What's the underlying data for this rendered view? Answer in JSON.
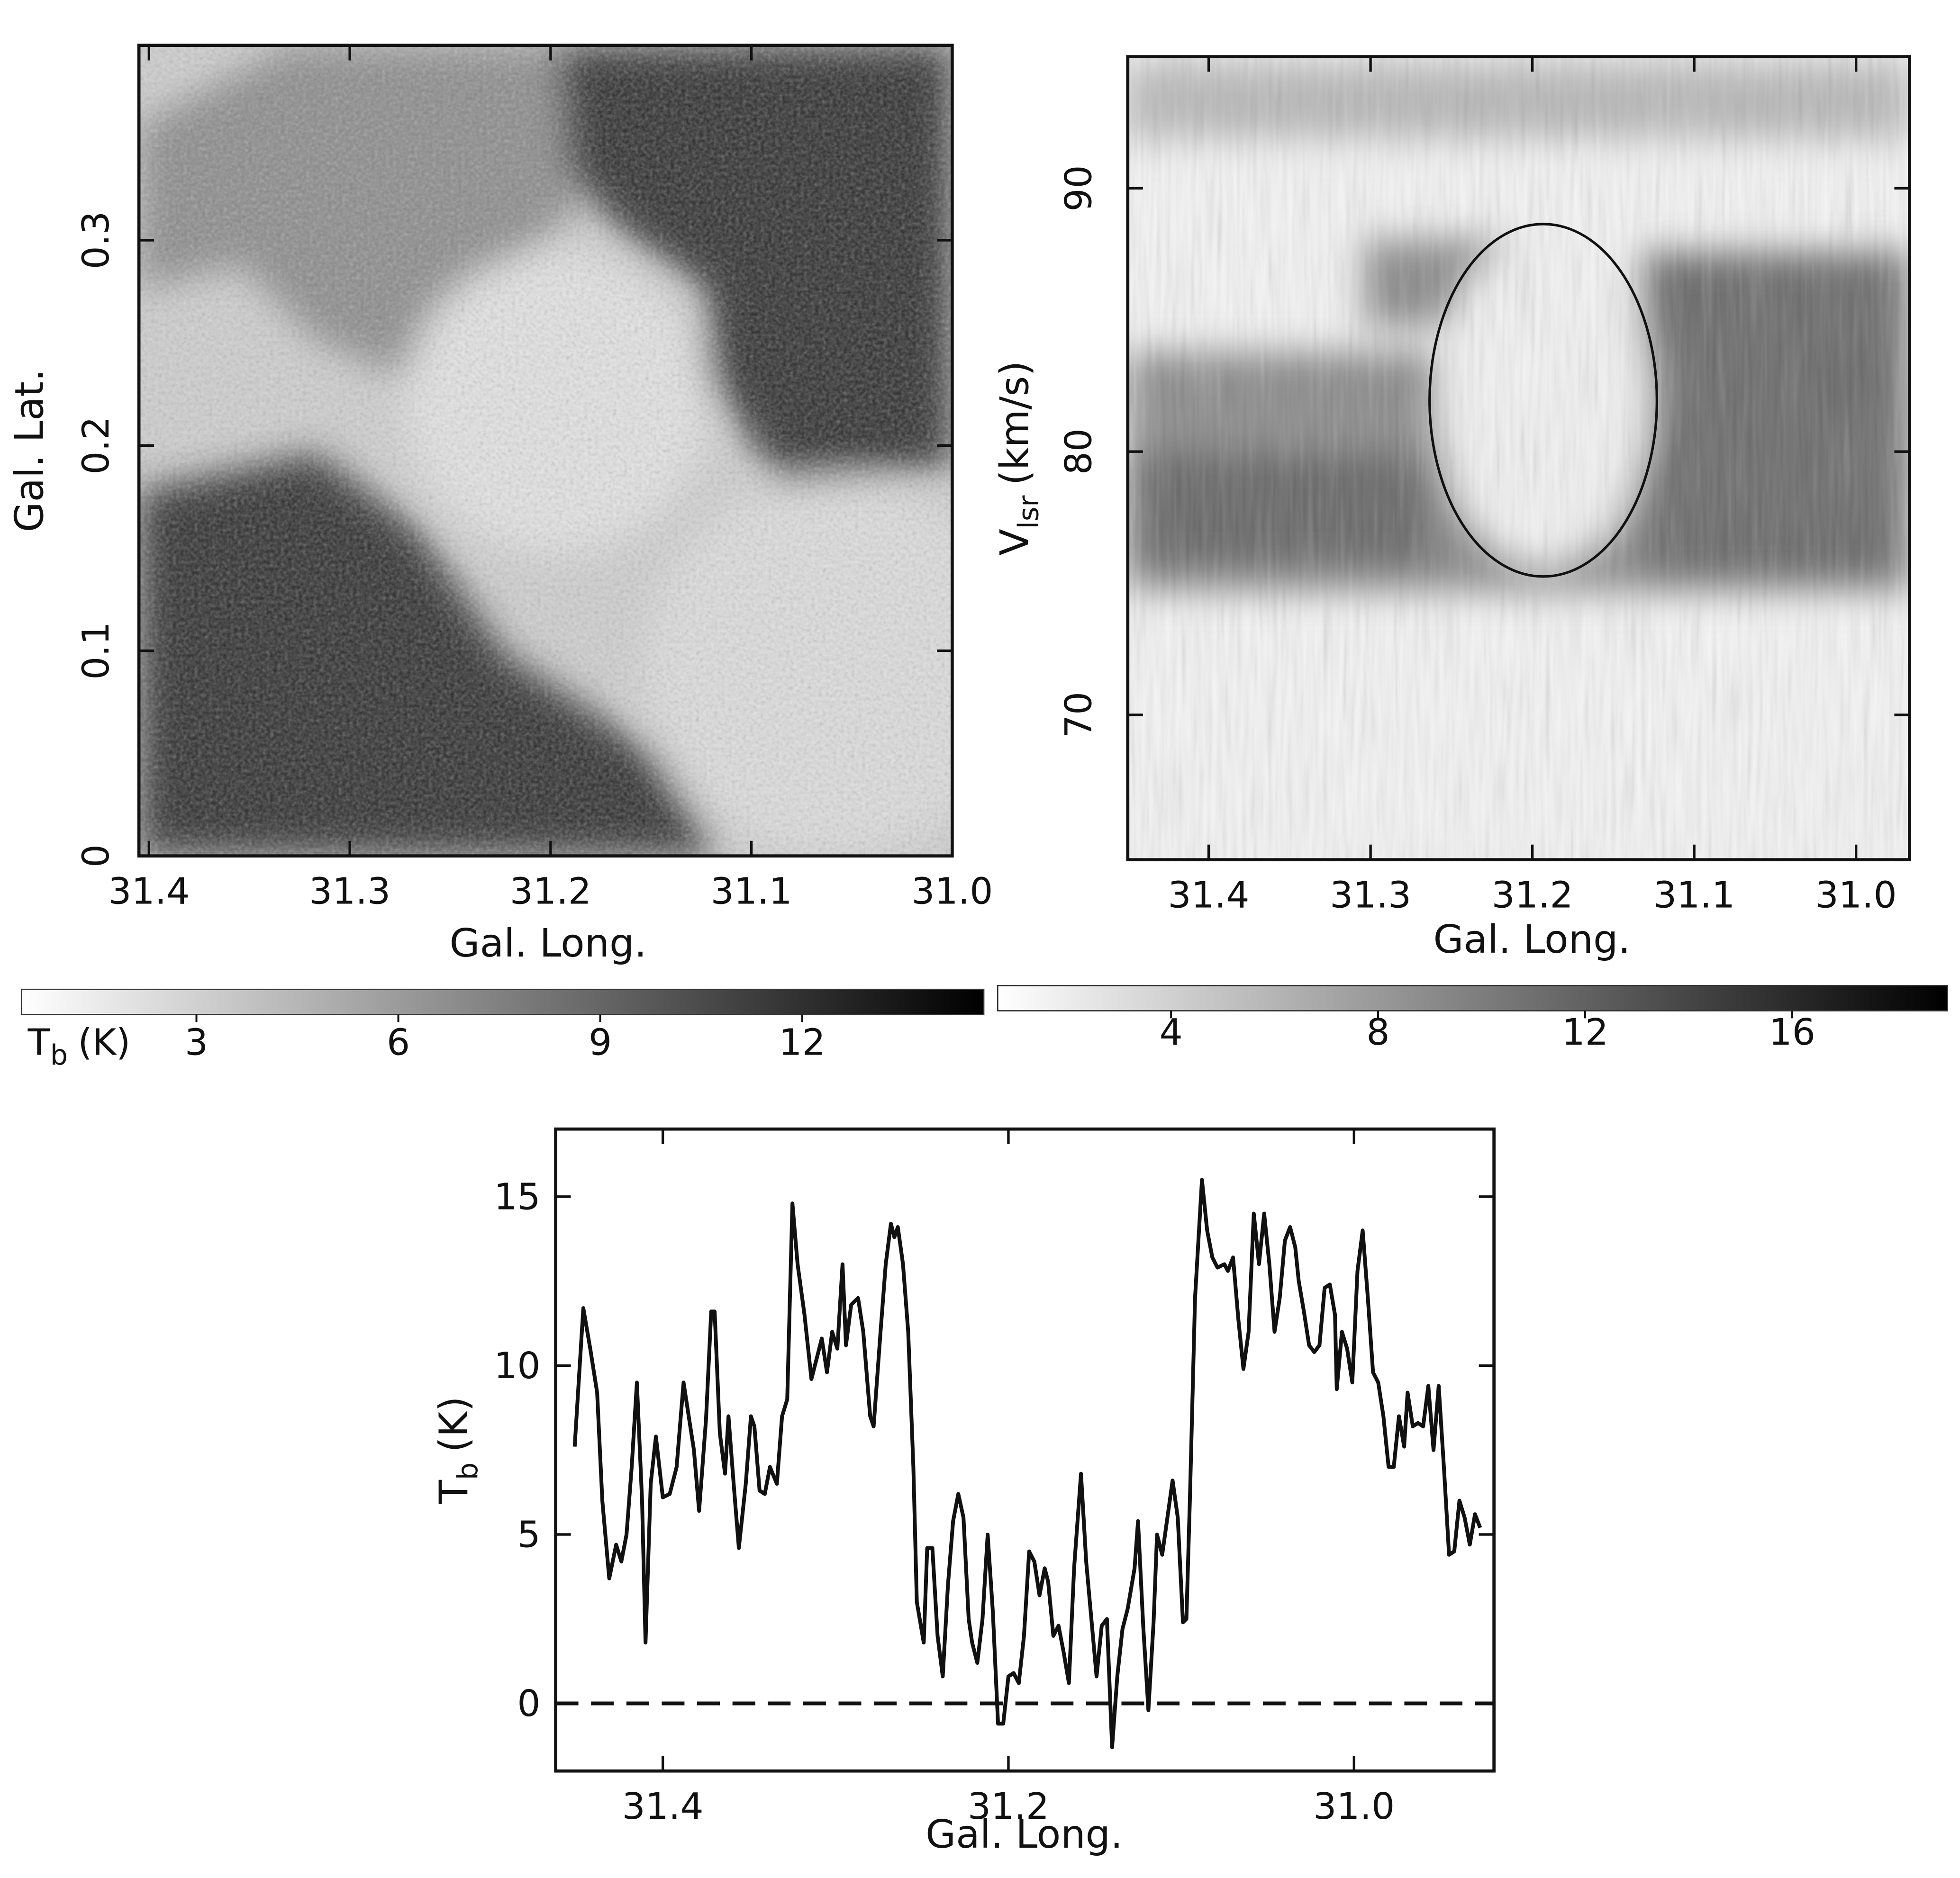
{
  "chart_data": [
    {
      "type": "heatmap",
      "xlabel": "Gal. Long.",
      "ylabel": "Gal. Lat.",
      "xlim": [
        31.405,
        31.0
      ],
      "xticks": [
        31.4,
        31.3,
        31.2,
        31.1,
        {
          "value": 31.0,
          "label": "31.0"
        }
      ],
      "ylim": [
        0,
        0.395
      ],
      "yticks": [
        0,
        0.1,
        0.2,
        0.3
      ],
      "colorbar": {
        "label": [
          "T",
          "b",
          "(K)"
        ],
        "lim": [
          0.4,
          14.7
        ],
        "ticks": [
          3,
          6,
          9,
          12
        ]
      }
    },
    {
      "type": "heatmap",
      "xlabel": "Gal. Long.",
      "ylabel": [
        "V",
        "lsr",
        "(km/s)"
      ],
      "xlim": [
        31.45,
        30.967
      ],
      "xticks": [
        31.4,
        31.3,
        31.2,
        31.1,
        {
          "value": 31.0,
          "label": "31.0"
        }
      ],
      "ylim": [
        64.5,
        95
      ],
      "yticks": [
        70,
        80,
        90
      ],
      "colorbar": {
        "lim": [
          0.65,
          19.0
        ],
        "ticks": [
          4,
          8,
          12,
          16
        ]
      }
    },
    {
      "type": "line",
      "xlabel": "Gal. Long.",
      "ylabel": [
        "T",
        "b",
        "(K)"
      ],
      "xlim": [
        31.462,
        30.919
      ],
      "xticks": [
        31.4,
        31.2,
        {
          "value": 31.0,
          "label": "31.0"
        }
      ],
      "ylim": [
        -2,
        17
      ],
      "yticks": [
        0,
        5,
        10,
        15
      ],
      "color": "#111111",
      "x": [
        31.451,
        31.446,
        31.442,
        31.438,
        31.435,
        31.431,
        31.427,
        31.424,
        31.421,
        31.418,
        31.415,
        31.412,
        31.41,
        31.407,
        31.404,
        31.4,
        31.396,
        31.392,
        31.388,
        31.385,
        31.382,
        31.379,
        31.375,
        31.372,
        31.37,
        31.367,
        31.364,
        31.362,
        31.359,
        31.356,
        31.352,
        31.349,
        31.347,
        31.344,
        31.341,
        31.338,
        31.334,
        31.331,
        31.328,
        31.325,
        31.322,
        31.318,
        31.314,
        31.311,
        31.308,
        31.305,
        31.302,
        31.299,
        31.296,
        31.294,
        31.291,
        31.287,
        31.284,
        31.28,
        31.278,
        31.274,
        31.271,
        31.268,
        31.266,
        31.264,
        31.261,
        31.258,
        31.255,
        31.253,
        31.249,
        31.247,
        31.244,
        31.241,
        31.238,
        31.235,
        31.232,
        31.229,
        31.226,
        31.223,
        31.221,
        31.218,
        31.215,
        31.212,
        31.209,
        31.206,
        31.203,
        31.2,
        31.197,
        31.194,
        31.191,
        31.188,
        31.185,
        31.182,
        31.179,
        31.177,
        31.174,
        31.171,
        31.168,
        31.165,
        31.162,
        31.158,
        31.155,
        31.152,
        31.149,
        31.146,
        31.143,
        31.14,
        31.137,
        31.134,
        31.131,
        31.127,
        31.125,
        31.122,
        31.119,
        31.116,
        31.114,
        31.111,
        31.108,
        31.105,
        31.102,
        31.099,
        31.097,
        31.095,
        31.092,
        31.088,
        31.085,
        31.082,
        31.079,
        31.075,
        31.073,
        31.07,
        31.067,
        31.064,
        31.061,
        31.058,
        31.055,
        31.052,
        31.049,
        31.046,
        31.043,
        31.04,
        31.037,
        31.034,
        31.032,
        31.029,
        31.026,
        31.023,
        31.02,
        31.017,
        31.014,
        31.011,
        31.01,
        31.007,
        31.004,
        31.001,
        30.998,
        30.995,
        30.992,
        30.989,
        30.986,
        30.983,
        30.98,
        30.977,
        30.974,
        30.971,
        30.969,
        30.966,
        30.963,
        30.96,
        30.957,
        30.954,
        30.951,
        30.948,
        30.945,
        30.942,
        30.939,
        30.936,
        30.933,
        30.93,
        30.927
      ],
      "values": [
        7.6,
        11.7,
        10.5,
        9.2,
        6,
        3.7,
        4.7,
        4.2,
        5,
        7,
        9.5,
        6,
        1.8,
        6.5,
        7.9,
        6.1,
        6.2,
        7,
        9.5,
        8.5,
        7.5,
        5.7,
        8.4,
        11.6,
        11.6,
        8,
        6.8,
        8.5,
        6.5,
        4.6,
        6.5,
        8.5,
        8.2,
        6.3,
        6.2,
        7,
        6.5,
        8.5,
        9,
        14.8,
        13,
        11.5,
        9.6,
        10.2,
        10.8,
        9.8,
        11,
        10.5,
        13,
        10.6,
        11.8,
        12,
        11,
        8.5,
        8.2,
        11,
        13,
        14.2,
        13.8,
        14.1,
        13,
        11,
        7,
        3,
        1.8,
        4.6,
        4.6,
        2,
        0.8,
        3.5,
        5.4,
        6.2,
        5.5,
        2.5,
        1.8,
        1.2,
        2.5,
        5,
        2.7,
        -0.6,
        -0.6,
        0.8,
        0.9,
        0.6,
        2,
        4.5,
        4.2,
        3.2,
        4,
        3.6,
        2,
        2.3,
        1.5,
        0.6,
        4,
        6.8,
        4.2,
        2.5,
        0.8,
        2.3,
        2.5,
        -1.3,
        0.8,
        2.2,
        2.8,
        4,
        5.4,
        2.3,
        -0.2,
        2.4,
        5,
        4.4,
        5.5,
        6.6,
        5.5,
        2.4,
        2.5,
        6,
        12,
        15.5,
        14,
        13.2,
        12.9,
        13,
        12.8,
        13.2,
        11.4,
        9.9,
        11,
        14.5,
        13,
        14.5,
        13,
        11,
        12,
        13.7,
        14.1,
        13.5,
        12.5,
        11.6,
        10.6,
        10.4,
        10.6,
        12.3,
        12.4,
        11.5,
        9.3,
        11,
        10.5,
        9.5,
        12.8,
        14,
        12,
        9.8,
        9.5,
        8.5,
        7,
        7,
        8.5,
        7.6,
        9.2,
        8.2,
        8.3,
        8.2,
        9.4,
        7.5,
        9.4,
        7,
        4.4,
        4.5,
        6,
        5.5,
        4.7,
        5.6,
        5.2
      ]
    }
  ]
}
